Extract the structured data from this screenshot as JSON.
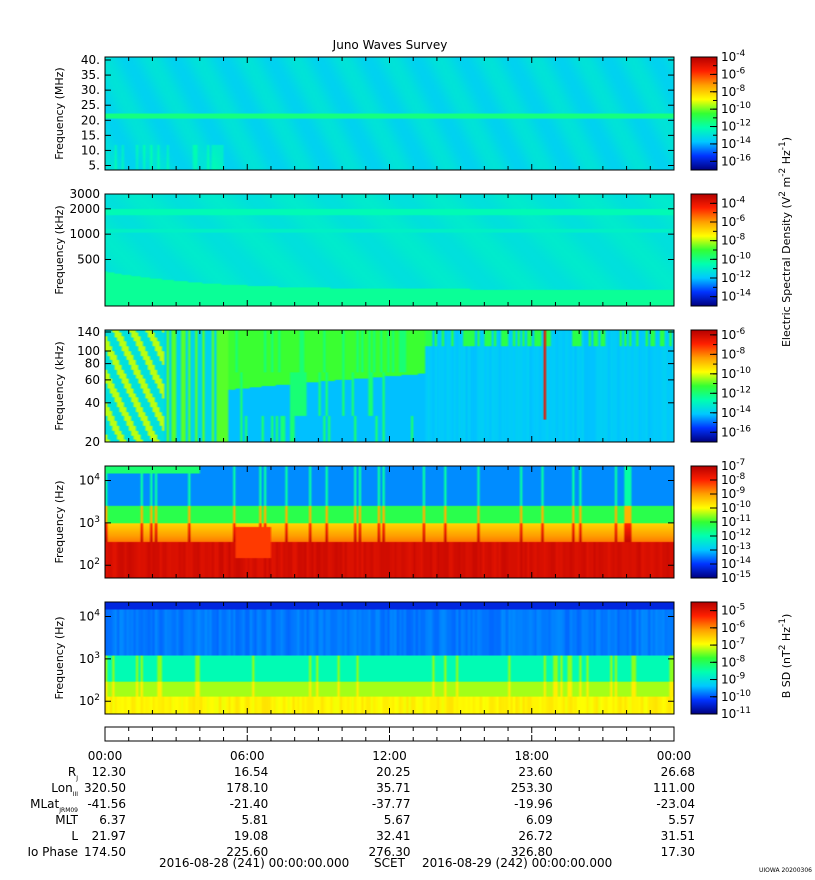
{
  "colors": {
    "background": "#ffffff",
    "colormap": [
      "#00007f",
      "#0033ff",
      "#00c8ff",
      "#00ffb0",
      "#33ff33",
      "#ffff00",
      "#ffa000",
      "#ff2000",
      "#b40000"
    ]
  },
  "chart_data": [
    {
      "type": "heatmap",
      "title": "Juno Waves Survey",
      "ylabel": "Frequency (MHz)",
      "ylim": [
        3.5,
        41
      ],
      "yscale": "linear",
      "yticks": [
        5,
        10,
        15,
        20,
        25,
        30,
        35,
        40
      ],
      "ytick_labels": [
        "5.",
        "10.",
        "15.",
        "20.",
        "25.",
        "30.",
        "35.",
        "40."
      ],
      "colorbar": {
        "scale": "log",
        "range": [
          -17,
          -4
        ],
        "tick_exponents": [
          -4,
          -6,
          -8,
          -10,
          -12,
          -14,
          -16
        ]
      },
      "features": [
        {
          "kind": "band",
          "y": 21.5,
          "value": -11.5
        },
        {
          "kind": "background",
          "value": -13.2
        }
      ]
    },
    {
      "type": "heatmap",
      "title": "",
      "ylabel": "Frequency (kHz)",
      "ylim": [
        140,
        3000
      ],
      "yscale": "log",
      "yticks": [
        500,
        1000,
        2000,
        3000
      ],
      "ytick_labels": [
        "500",
        "1000",
        "2000",
        "3000"
      ],
      "colorbar": {
        "scale": "log",
        "range": [
          -15,
          -3
        ],
        "tick_exponents": [
          -4,
          -6,
          -8,
          -10,
          -12,
          -14
        ]
      },
      "shared_colorbar_label": "Electric Spectral Density (V",
      "shared_colorbar_label_sup1": "2",
      "shared_colorbar_label_mid": " m",
      "shared_colorbar_label_sup2": "-2",
      "shared_colorbar_label_mid2": " Hz",
      "shared_colorbar_label_sup3": "-1",
      "shared_colorbar_label_end": ")",
      "features": [
        {
          "kind": "band",
          "y": 1850,
          "value": -10.5
        },
        {
          "kind": "background",
          "value": -11.2
        }
      ]
    },
    {
      "type": "heatmap",
      "title": "",
      "ylabel": "Frequency (kHz)",
      "ylim": [
        20,
        145
      ],
      "yscale": "log",
      "yticks": [
        20,
        40,
        60,
        80,
        100,
        140
      ],
      "ytick_labels": [
        "20",
        "40",
        "60",
        "80",
        "100",
        "140"
      ],
      "colorbar": {
        "scale": "log",
        "range": [
          -17,
          -5.5
        ],
        "tick_exponents": [
          -6,
          -8,
          -10,
          -12,
          -14,
          -16
        ]
      },
      "features": [
        {
          "kind": "region",
          "x_hours": [
            0,
            2.5
          ],
          "value": -10.5
        },
        {
          "kind": "region",
          "x_hours": [
            5.2,
            13.5
          ],
          "value": -11
        },
        {
          "kind": "region",
          "x_hours": [
            13.5,
            24
          ],
          "value": -14
        },
        {
          "kind": "spike",
          "x_hours": 18.55,
          "value": -6.5
        }
      ]
    },
    {
      "type": "heatmap",
      "title": "",
      "ylabel": "Frequency (Hz)",
      "ylim": [
        50,
        22000
      ],
      "yscale": "log",
      "yticks": [
        100,
        1000,
        10000
      ],
      "ytick_labels": [
        "10",
        "10",
        "10"
      ],
      "ytick_exponents": [
        "2",
        "3",
        "4"
      ],
      "colorbar": {
        "scale": "log",
        "range": [
          -15,
          -7
        ],
        "tick_exponents": [
          -7,
          -8,
          -9,
          -10,
          -11,
          -12,
          -13,
          -14,
          -15
        ]
      },
      "features": [
        {
          "kind": "band",
          "y_range": [
            50,
            1000
          ],
          "value": -8
        },
        {
          "kind": "background",
          "value": -13.5
        }
      ]
    },
    {
      "type": "heatmap",
      "title": "",
      "ylabel": "Frequency (Hz)",
      "ylim": [
        50,
        22000
      ],
      "yscale": "log",
      "yticks": [
        100,
        1000,
        10000
      ],
      "ytick_labels": [
        "10",
        "10",
        "10"
      ],
      "ytick_exponents": [
        "2",
        "3",
        "4"
      ],
      "colorbar": {
        "scale": "log",
        "range": [
          -11,
          -4.5
        ],
        "tick_exponents": [
          -5,
          -6,
          -7,
          -8,
          -9,
          -10,
          -11
        ]
      },
      "colorbar_label": "B SD (nT",
      "colorbar_label_sup1": "2",
      "colorbar_label_mid": " Hz",
      "colorbar_label_sup2": "-1",
      "colorbar_label_end": ")",
      "features": [
        {
          "kind": "band",
          "y_range": [
            50,
            200
          ],
          "value": -6.8
        },
        {
          "kind": "background",
          "value": -9.8
        }
      ]
    }
  ],
  "time_axis": {
    "range_hours": [
      0,
      24
    ],
    "tick_labels": [
      "00:00",
      "06:00",
      "12:00",
      "18:00",
      "00:00"
    ],
    "tick_hours": [
      0,
      6,
      12,
      18,
      24
    ]
  },
  "ephemeris": [
    {
      "name": "R",
      "sub": "J",
      "values": [
        "12.30",
        "16.54",
        "20.25",
        "23.60",
        "26.68"
      ]
    },
    {
      "name": "Lon",
      "sub": "III",
      "values": [
        "320.50",
        "178.10",
        "35.71",
        "253.30",
        "111.00"
      ]
    },
    {
      "name": "MLat",
      "sub": "JRM09",
      "values": [
        "-41.56",
        "-21.40",
        "-37.77",
        "-19.96",
        "-23.04"
      ]
    },
    {
      "name": "MLT",
      "sub": "",
      "values": [
        "6.37",
        "5.81",
        "5.67",
        "6.09",
        "5.57"
      ]
    },
    {
      "name": "L",
      "sub": "",
      "values": [
        "21.97",
        "19.08",
        "32.41",
        "26.72",
        "31.51"
      ]
    },
    {
      "name": "Io Phase",
      "sub": "",
      "values": [
        "174.50",
        "225.60",
        "276.30",
        "326.80",
        "17.30"
      ]
    }
  ],
  "footer": {
    "start": "2016-08-28 (241) 00:00:00.000",
    "scet": "SCET",
    "end": "2016-08-29 (242) 00:00:00.000",
    "stamp": "UIOWA 20200306"
  }
}
